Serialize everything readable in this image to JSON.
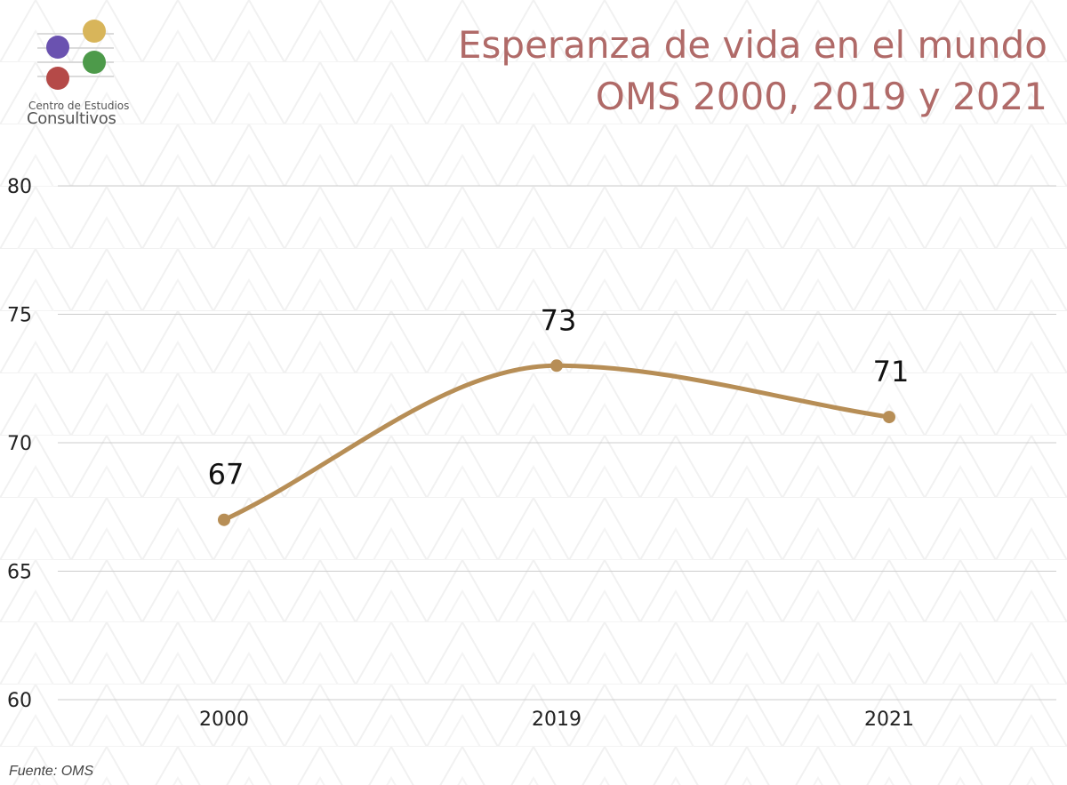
{
  "logo": {
    "line1": "Centro de Estudios",
    "line2": "Consultivos",
    "colors": [
      "#6a52b0",
      "#d8b55a",
      "#b54a48",
      "#4d9a4a"
    ]
  },
  "title": {
    "line1": "Esperanza de vida en el mundo",
    "line2": "OMS 2000, 2019 y 2021"
  },
  "source": "Fuente: OMS",
  "colors": {
    "title": "#b06a68",
    "line": "#b78e56",
    "grid": "#cccccc",
    "text": "#222222"
  },
  "chart_data": {
    "type": "line",
    "title": "Esperanza de vida en el mundo OMS 2000, 2019 y 2021",
    "categories": [
      "2000",
      "2019",
      "2021"
    ],
    "series": [
      {
        "name": "Esperanza de vida",
        "values": [
          67,
          73,
          71
        ]
      }
    ],
    "data_labels": [
      "67",
      "73",
      "71"
    ],
    "ylim": [
      60,
      80
    ],
    "yticks": [
      60,
      65,
      70,
      75,
      80
    ],
    "xlabel": "",
    "ylabel": "",
    "grid": true,
    "smooth": true
  }
}
